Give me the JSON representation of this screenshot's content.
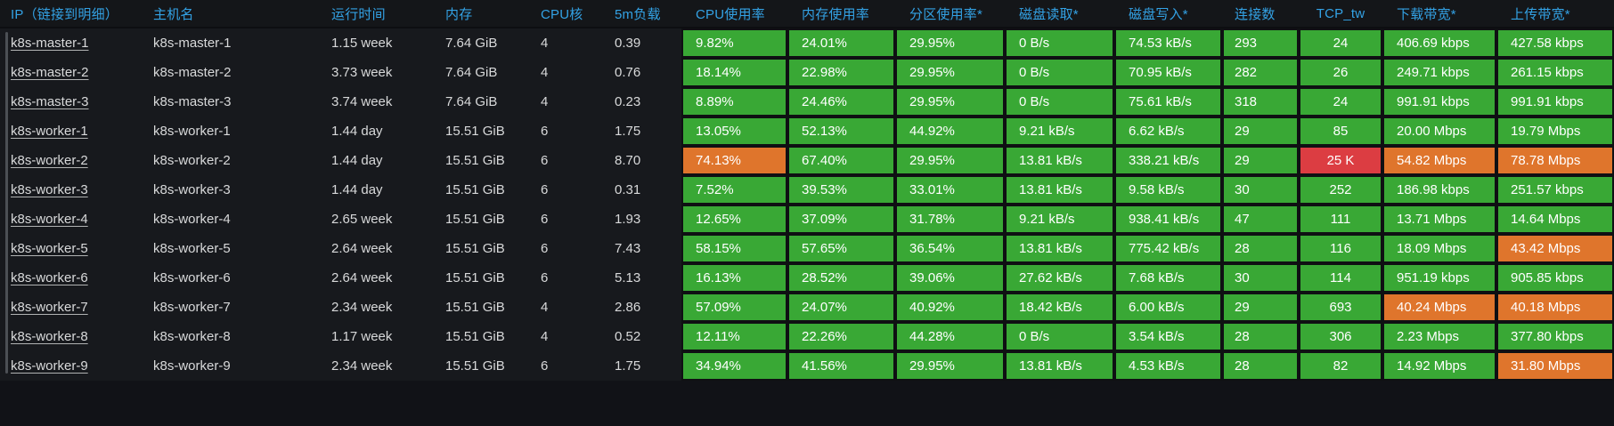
{
  "theme": {
    "background": "#111217",
    "row_background": "#17191d",
    "cell_gap": "#0f1013",
    "green": "#39a835",
    "orange": "#df752c",
    "red": "#dc3d42",
    "header_text": "#33a2e5",
    "body_text": "#d8d9da",
    "cell_text": "#ffffff"
  },
  "table": {
    "columns": [
      {
        "key": "ip",
        "label": "IP（链接到明细）"
      },
      {
        "key": "hostname",
        "label": "主机名"
      },
      {
        "key": "uptime",
        "label": "运行时间"
      },
      {
        "key": "memory",
        "label": "内存"
      },
      {
        "key": "cores",
        "label": "CPU核"
      },
      {
        "key": "load5m",
        "label": "5m负载"
      },
      {
        "key": "cpu_usage",
        "label": "CPU使用率"
      },
      {
        "key": "mem_usage",
        "label": "内存使用率"
      },
      {
        "key": "partition_usage",
        "label": "分区使用率*"
      },
      {
        "key": "disk_read",
        "label": "磁盘读取*"
      },
      {
        "key": "disk_write",
        "label": "磁盘写入*"
      },
      {
        "key": "connections",
        "label": "连接数"
      },
      {
        "key": "tcp_tw",
        "label": "TCP_tw"
      },
      {
        "key": "download",
        "label": "下载带宽*"
      },
      {
        "key": "upload",
        "label": "上传带宽*"
      }
    ],
    "rows": [
      {
        "ip": "k8s-master-1",
        "hostname": "k8s-master-1",
        "uptime": "1.15 week",
        "memory": "7.64 GiB",
        "cores": "4",
        "load5m": "0.39",
        "cpu_usage": "9.82%",
        "mem_usage": "24.01%",
        "partition_usage": "29.95%",
        "disk_read": "0 B/s",
        "disk_write": "74.53 kB/s",
        "connections": "293",
        "tcp_tw": "24",
        "download": "406.69 kbps",
        "upload": "427.58 kbps",
        "cell_colors": {}
      },
      {
        "ip": "k8s-master-2",
        "hostname": "k8s-master-2",
        "uptime": "3.73 week",
        "memory": "7.64 GiB",
        "cores": "4",
        "load5m": "0.76",
        "cpu_usage": "18.14%",
        "mem_usage": "22.98%",
        "partition_usage": "29.95%",
        "disk_read": "0 B/s",
        "disk_write": "70.95 kB/s",
        "connections": "282",
        "tcp_tw": "26",
        "download": "249.71 kbps",
        "upload": "261.15 kbps",
        "cell_colors": {}
      },
      {
        "ip": "k8s-master-3",
        "hostname": "k8s-master-3",
        "uptime": "3.74 week",
        "memory": "7.64 GiB",
        "cores": "4",
        "load5m": "0.23",
        "cpu_usage": "8.89%",
        "mem_usage": "24.46%",
        "partition_usage": "29.95%",
        "disk_read": "0 B/s",
        "disk_write": "75.61 kB/s",
        "connections": "318",
        "tcp_tw": "24",
        "download": "991.91 kbps",
        "upload": "991.91 kbps",
        "cell_colors": {}
      },
      {
        "ip": "k8s-worker-1",
        "hostname": "k8s-worker-1",
        "uptime": "1.44 day",
        "memory": "15.51 GiB",
        "cores": "6",
        "load5m": "1.75",
        "cpu_usage": "13.05%",
        "mem_usage": "52.13%",
        "partition_usage": "44.92%",
        "disk_read": "9.21 kB/s",
        "disk_write": "6.62 kB/s",
        "connections": "29",
        "tcp_tw": "85",
        "download": "20.00 Mbps",
        "upload": "19.79 Mbps",
        "cell_colors": {}
      },
      {
        "ip": "k8s-worker-2",
        "hostname": "k8s-worker-2",
        "uptime": "1.44 day",
        "memory": "15.51 GiB",
        "cores": "6",
        "load5m": "8.70",
        "cpu_usage": "74.13%",
        "mem_usage": "67.40%",
        "partition_usage": "29.95%",
        "disk_read": "13.81 kB/s",
        "disk_write": "338.21 kB/s",
        "connections": "29",
        "tcp_tw": "25 K",
        "download": "54.82 Mbps",
        "upload": "78.78 Mbps",
        "cell_colors": {
          "cpu_usage": "orange",
          "tcp_tw": "red",
          "download": "orange",
          "upload": "orange"
        }
      },
      {
        "ip": "k8s-worker-3",
        "hostname": "k8s-worker-3",
        "uptime": "1.44 day",
        "memory": "15.51 GiB",
        "cores": "6",
        "load5m": "0.31",
        "cpu_usage": "7.52%",
        "mem_usage": "39.53%",
        "partition_usage": "33.01%",
        "disk_read": "13.81 kB/s",
        "disk_write": "9.58 kB/s",
        "connections": "30",
        "tcp_tw": "252",
        "download": "186.98 kbps",
        "upload": "251.57 kbps",
        "cell_colors": {}
      },
      {
        "ip": "k8s-worker-4",
        "hostname": "k8s-worker-4",
        "uptime": "2.65 week",
        "memory": "15.51 GiB",
        "cores": "6",
        "load5m": "1.93",
        "cpu_usage": "12.65%",
        "mem_usage": "37.09%",
        "partition_usage": "31.78%",
        "disk_read": "9.21 kB/s",
        "disk_write": "938.41 kB/s",
        "connections": "47",
        "tcp_tw": "111",
        "download": "13.71 Mbps",
        "upload": "14.64 Mbps",
        "cell_colors": {}
      },
      {
        "ip": "k8s-worker-5",
        "hostname": "k8s-worker-5",
        "uptime": "2.64 week",
        "memory": "15.51 GiB",
        "cores": "6",
        "load5m": "7.43",
        "cpu_usage": "58.15%",
        "mem_usage": "57.65%",
        "partition_usage": "36.54%",
        "disk_read": "13.81 kB/s",
        "disk_write": "775.42 kB/s",
        "connections": "28",
        "tcp_tw": "116",
        "download": "18.09 Mbps",
        "upload": "43.42 Mbps",
        "cell_colors": {
          "upload": "orange"
        }
      },
      {
        "ip": "k8s-worker-6",
        "hostname": "k8s-worker-6",
        "uptime": "2.64 week",
        "memory": "15.51 GiB",
        "cores": "6",
        "load5m": "5.13",
        "cpu_usage": "16.13%",
        "mem_usage": "28.52%",
        "partition_usage": "39.06%",
        "disk_read": "27.62 kB/s",
        "disk_write": "7.68 kB/s",
        "connections": "30",
        "tcp_tw": "114",
        "download": "951.19 kbps",
        "upload": "905.85 kbps",
        "cell_colors": {}
      },
      {
        "ip": "k8s-worker-7",
        "hostname": "k8s-worker-7",
        "uptime": "2.34 week",
        "memory": "15.51 GiB",
        "cores": "4",
        "load5m": "2.86",
        "cpu_usage": "57.09%",
        "mem_usage": "24.07%",
        "partition_usage": "40.92%",
        "disk_read": "18.42 kB/s",
        "disk_write": "6.00 kB/s",
        "connections": "29",
        "tcp_tw": "693",
        "download": "40.24 Mbps",
        "upload": "40.18 Mbps",
        "cell_colors": {
          "download": "orange",
          "upload": "orange"
        }
      },
      {
        "ip": "k8s-worker-8",
        "hostname": "k8s-worker-8",
        "uptime": "1.17 week",
        "memory": "15.51 GiB",
        "cores": "4",
        "load5m": "0.52",
        "cpu_usage": "12.11%",
        "mem_usage": "22.26%",
        "partition_usage": "44.28%",
        "disk_read": "0 B/s",
        "disk_write": "3.54 kB/s",
        "connections": "28",
        "tcp_tw": "306",
        "download": "2.23 Mbps",
        "upload": "377.80 kbps",
        "cell_colors": {}
      },
      {
        "ip": "k8s-worker-9",
        "hostname": "k8s-worker-9",
        "uptime": "2.34 week",
        "memory": "15.51 GiB",
        "cores": "6",
        "load5m": "1.75",
        "cpu_usage": "34.94%",
        "mem_usage": "41.56%",
        "partition_usage": "29.95%",
        "disk_read": "13.81 kB/s",
        "disk_write": "4.53 kB/s",
        "connections": "28",
        "tcp_tw": "82",
        "download": "14.92 Mbps",
        "upload": "31.80 Mbps",
        "cell_colors": {
          "upload": "orange"
        }
      }
    ]
  }
}
